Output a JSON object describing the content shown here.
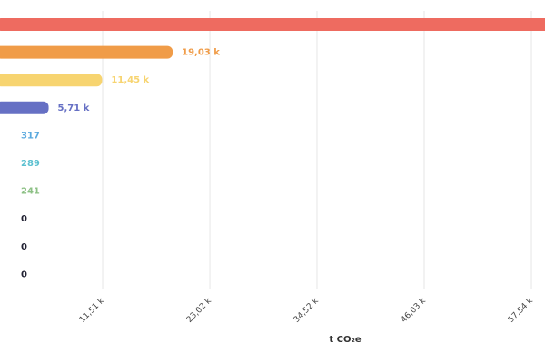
{
  "chart_data": {
    "type": "hbar",
    "x_label": "t CO₂e",
    "categories": [
      null,
      null,
      null,
      null,
      null,
      null,
      null,
      null,
      null,
      null
    ],
    "values": [
      60000,
      19030,
      11450,
      5710,
      317,
      289,
      241,
      0,
      0,
      0
    ],
    "value_labels": [
      null,
      "19,03 k",
      "11,45 k",
      "5,71 k",
      "317",
      "289",
      "241",
      "0",
      "0",
      "0"
    ],
    "colors": [
      "#ee6b60",
      "#f09c48",
      "#f7d470",
      "#6670c4",
      "#5aa9de",
      "#5bc0d0",
      "#8cc084",
      "#222233",
      "#222233",
      "#222233"
    ],
    "xlim": [
      0,
      59000
    ],
    "xticks": [
      {
        "value": 11510,
        "label": "11,51 k"
      },
      {
        "value": 23020,
        "label": "23,02 k"
      },
      {
        "value": 34520,
        "label": "34,52 k"
      },
      {
        "value": 46030,
        "label": "46,03 k"
      },
      {
        "value": 57540,
        "label": "57,54 k"
      }
    ],
    "grid": true
  }
}
